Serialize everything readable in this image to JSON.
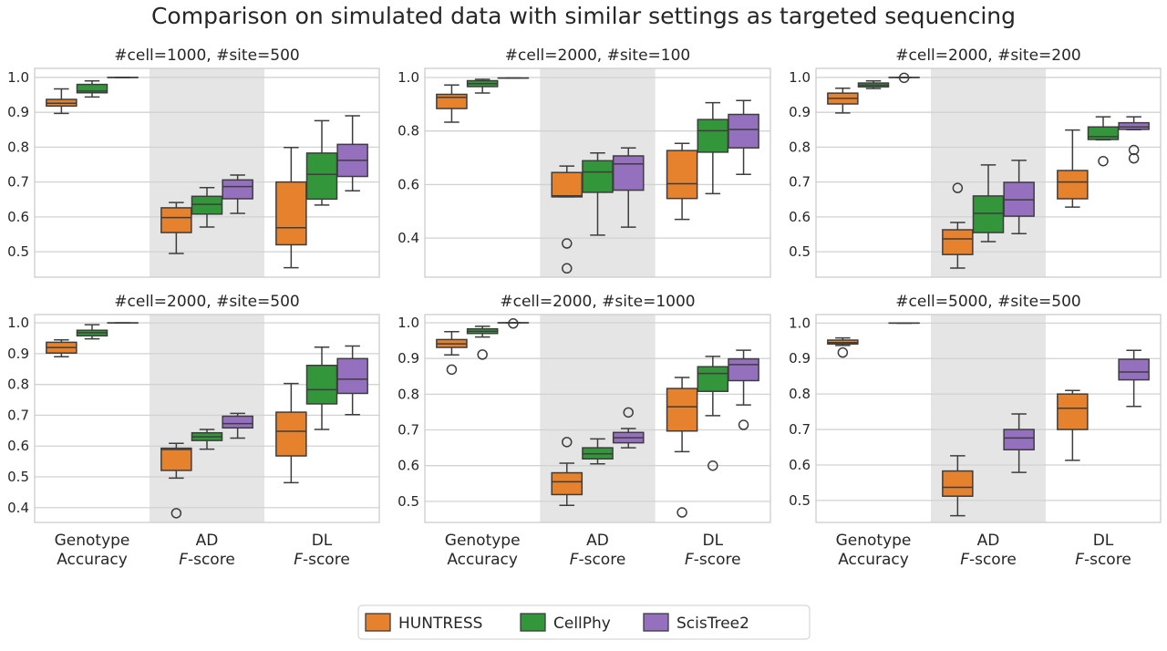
{
  "chart_data": {
    "type": "box",
    "title": "Comparison on simulated data with similar settings as targeted sequencing",
    "series": [
      {
        "name": "HUNTRESS",
        "color": "#e6822d"
      },
      {
        "name": "CellPhy",
        "color": "#33963a"
      },
      {
        "name": "ScisTree2",
        "color": "#9470bf"
      }
    ],
    "groups": [
      {
        "line1": "Genotype",
        "line2_italic": "",
        "line2": "Accuracy"
      },
      {
        "line1": "AD",
        "line2_italic": "F",
        "line2": "-score"
      },
      {
        "line1": "DL",
        "line2_italic": "F",
        "line2": "-score"
      }
    ],
    "grid": true,
    "shaded_group": "AD",
    "legend_position": "bottom-center",
    "box_format": "[whisker_low, q1, median, q3, whisker_high, [outliers]]",
    "panels": [
      {
        "title": "#cell=1000, #site=500",
        "ylim": [
          0.427,
          1.026
        ],
        "yticks": [
          "0.5",
          "0.6",
          "0.7",
          "0.8",
          "0.9",
          "1.0"
        ],
        "boxes": [
          [
            [
              0.897,
              0.918,
              0.926,
              0.937,
              0.967,
              []
            ],
            [
              0.944,
              0.956,
              0.961,
              0.98,
              0.99,
              []
            ],
            [
              1.0,
              1.0,
              1.0,
              1.0,
              1.0,
              []
            ]
          ],
          [
            [
              0.495,
              0.555,
              0.598,
              0.626,
              0.641,
              []
            ],
            [
              0.571,
              0.608,
              0.636,
              0.659,
              0.684,
              []
            ],
            [
              0.61,
              0.652,
              0.687,
              0.706,
              0.72,
              []
            ]
          ],
          [
            [
              0.454,
              0.52,
              0.569,
              0.7,
              0.799,
              []
            ],
            [
              0.634,
              0.651,
              0.722,
              0.783,
              0.876,
              []
            ],
            [
              0.675,
              0.716,
              0.762,
              0.808,
              0.89,
              []
            ]
          ]
        ]
      },
      {
        "title": "#cell=2000, #site=100",
        "ylim": [
          0.254,
          1.034
        ],
        "yticks": [
          "0.4",
          "0.6",
          "0.8",
          "1.0"
        ],
        "boxes": [
          [
            [
              0.833,
              0.884,
              0.926,
              0.937,
              0.972,
              []
            ],
            [
              0.942,
              0.966,
              0.977,
              0.988,
              0.993,
              []
            ],
            [
              0.998,
              0.998,
              0.998,
              0.998,
              0.998,
              []
            ]
          ],
          [
            [
              0.554,
              0.554,
              0.558,
              0.645,
              0.669,
              [
                0.38,
                0.287
              ]
            ],
            [
              0.411,
              0.571,
              0.647,
              0.689,
              0.718,
              []
            ],
            [
              0.441,
              0.579,
              0.677,
              0.707,
              0.737,
              []
            ]
          ],
          [
            [
              0.47,
              0.548,
              0.603,
              0.727,
              0.754,
              []
            ],
            [
              0.566,
              0.721,
              0.801,
              0.843,
              0.906,
              []
            ],
            [
              0.638,
              0.737,
              0.806,
              0.862,
              0.914,
              []
            ]
          ]
        ]
      },
      {
        "title": "#cell=2000, #site=200",
        "ylim": [
          0.427,
          1.026
        ],
        "yticks": [
          "0.5",
          "0.6",
          "0.7",
          "0.8",
          "0.9",
          "1.0"
        ],
        "boxes": [
          [
            [
              0.898,
              0.924,
              0.94,
              0.955,
              0.969,
              []
            ],
            [
              0.968,
              0.973,
              0.978,
              0.984,
              0.99,
              []
            ],
            [
              1.0,
              1.0,
              1.0,
              1.0,
              1.0,
              [
                0.999
              ]
            ]
          ],
          [
            [
              0.453,
              0.492,
              0.537,
              0.563,
              0.584,
              [
                0.683
              ]
            ],
            [
              0.529,
              0.555,
              0.61,
              0.66,
              0.749,
              []
            ],
            [
              0.552,
              0.602,
              0.649,
              0.699,
              0.762,
              []
            ]
          ],
          [
            [
              0.628,
              0.652,
              0.7,
              0.733,
              0.849,
              []
            ],
            [
              0.821,
              0.822,
              0.83,
              0.858,
              0.887,
              [
                0.76
              ]
            ],
            [
              0.85,
              0.851,
              0.858,
              0.87,
              0.887,
              [
                0.792,
                0.768
              ]
            ]
          ]
        ]
      },
      {
        "title": "#cell=2000, #site=500",
        "ylim": [
          0.352,
          1.027
        ],
        "yticks": [
          "0.4",
          "0.5",
          "0.6",
          "0.7",
          "0.8",
          "0.9",
          "1.0"
        ],
        "boxes": [
          [
            [
              0.89,
              0.902,
              0.92,
              0.937,
              0.945,
              []
            ],
            [
              0.948,
              0.958,
              0.968,
              0.976,
              0.994,
              []
            ],
            [
              1.0,
              1.0,
              1.0,
              1.0,
              1.0,
              []
            ]
          ],
          [
            [
              0.496,
              0.521,
              0.589,
              0.593,
              0.609,
              [
                0.382
              ]
            ],
            [
              0.59,
              0.618,
              0.63,
              0.643,
              0.654,
              []
            ],
            [
              0.626,
              0.659,
              0.673,
              0.697,
              0.706,
              []
            ]
          ],
          [
            [
              0.481,
              0.568,
              0.648,
              0.71,
              0.803,
              []
            ],
            [
              0.654,
              0.737,
              0.783,
              0.862,
              0.921,
              []
            ],
            [
              0.702,
              0.771,
              0.817,
              0.884,
              0.925,
              []
            ]
          ]
        ]
      },
      {
        "title": "#cell=2000, #site=1000",
        "ylim": [
          0.441,
          1.023
        ],
        "yticks": [
          "0.5",
          "0.6",
          "0.7",
          "0.8",
          "0.9",
          "1.0"
        ],
        "boxes": [
          [
            [
              0.91,
              0.931,
              0.941,
              0.953,
              0.975,
              [
                0.869
              ]
            ],
            [
              0.96,
              0.97,
              0.976,
              0.983,
              0.99,
              [
                0.911
              ]
            ],
            [
              1.0,
              1.0,
              1.0,
              1.0,
              1.0,
              [
                0.998
              ]
            ]
          ],
          [
            [
              0.489,
              0.519,
              0.555,
              0.58,
              0.607,
              [
                0.666
              ]
            ],
            [
              0.605,
              0.619,
              0.633,
              0.65,
              0.675,
              []
            ],
            [
              0.65,
              0.664,
              0.678,
              0.693,
              0.704,
              [
                0.749
              ]
            ]
          ],
          [
            [
              0.639,
              0.697,
              0.765,
              0.816,
              0.847,
              [
                0.469
              ]
            ],
            [
              0.74,
              0.808,
              0.858,
              0.877,
              0.906,
              [
                0.6
              ]
            ],
            [
              0.77,
              0.838,
              0.883,
              0.899,
              0.923,
              [
                0.714
              ]
            ]
          ]
        ]
      },
      {
        "title": "#cell=5000, #site=500",
        "ylim": [
          0.438,
          1.024
        ],
        "yticks": [
          "0.5",
          "0.6",
          "0.7",
          "0.8",
          "0.9",
          "1.0"
        ],
        "boxes": [
          [
            [
              0.937,
              0.941,
              0.945,
              0.952,
              0.958,
              [
                0.917
              ]
            ],
            null,
            [
              1.0,
              1.0,
              1.0,
              1.0,
              1.0,
              []
            ]
          ],
          [
            [
              0.457,
              0.512,
              0.537,
              0.583,
              0.626,
              []
            ],
            null,
            [
              0.579,
              0.643,
              0.676,
              0.7,
              0.744,
              []
            ]
          ],
          [
            [
              0.613,
              0.7,
              0.76,
              0.8,
              0.81,
              []
            ],
            null,
            [
              0.765,
              0.84,
              0.862,
              0.898,
              0.923,
              []
            ]
          ]
        ]
      }
    ]
  }
}
